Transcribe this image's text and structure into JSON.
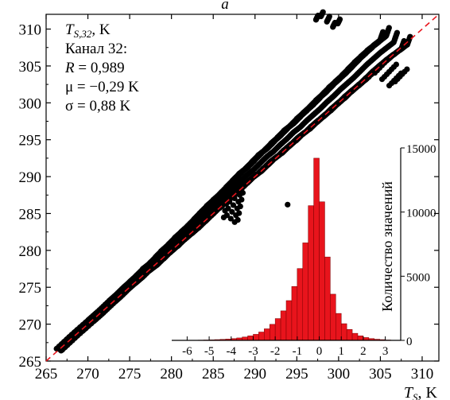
{
  "top_label": "a",
  "chart_data": [
    {
      "type": "scatter",
      "xlabel_main": "T",
      "xlabel_sub": "S",
      "xlabel_unit": ", K",
      "xlim": [
        265,
        312
      ],
      "ylim": [
        265,
        312
      ],
      "xticks": [
        265,
        270,
        275,
        280,
        285,
        290,
        295,
        300,
        305,
        310
      ],
      "yticks": [
        265,
        270,
        275,
        280,
        285,
        290,
        295,
        300,
        305,
        310
      ],
      "reference_line": {
        "slope": 1,
        "intercept": 0,
        "style": "dashed",
        "color": "#e8141c"
      },
      "marker_color": "#000000",
      "series": [
        {
          "x": [
            266.6,
            268.4,
            270.4,
            271.5,
            272.9,
            273.6,
            274.6,
            275.4,
            276.1,
            277.0,
            277.8,
            278.6,
            279.3,
            280.2,
            281.0,
            281.8,
            282.6,
            283.4,
            284.1,
            285.0,
            285.8,
            286.6,
            287.4,
            288.2,
            289.0,
            289.8,
            290.6,
            291.4,
            292.2,
            293.0,
            293.8,
            294.6,
            295.4,
            296.2,
            297.0,
            297.8,
            298.6,
            299.4,
            300.2,
            301.0,
            301.8,
            302.6,
            303.4,
            304.2,
            305.0,
            305.8,
            306.6,
            307.0,
            298.6,
            298.9,
            305.2,
            306.9,
            293.9,
            287.1,
            288.0
          ],
          "y": [
            266.6,
            268.5,
            270.5,
            271.6,
            273.1,
            273.8,
            274.9,
            275.7,
            276.4,
            277.4,
            278.1,
            279.0,
            279.8,
            280.7,
            281.6,
            282.4,
            283.2,
            284.1,
            284.9,
            285.9,
            286.7,
            287.5,
            288.4,
            289.3,
            290.2,
            290.9,
            291.8,
            292.7,
            293.4,
            294.3,
            295.1,
            296.0,
            296.7,
            297.6,
            298.4,
            299.2,
            300.1,
            300.9,
            301.8,
            302.6,
            303.4,
            304.3,
            305.2,
            306.0,
            306.8,
            307.5,
            308.2,
            309.5,
            311.0,
            311.7,
            303.2,
            305.2,
            286.2,
            284.3,
            289.8
          ]
        }
      ],
      "annotations": [
        {
          "main": "T",
          "sub": "S,32",
          "suffix": ", K"
        },
        {
          "text": "Канал 32:"
        },
        {
          "text_italic": "R",
          "text": " = 0,989"
        },
        {
          "text": "μ = −0,29 K"
        },
        {
          "text": "σ = 0,88 K"
        }
      ]
    },
    {
      "type": "bar",
      "role": "inset-histogram",
      "color": "#e8141c",
      "ylabel": "Количество значений",
      "xlim": [
        -6.7,
        3.7
      ],
      "ylim": [
        0,
        15000
      ],
      "xticks": [
        -6,
        -5,
        -4,
        -3,
        -2,
        -1,
        0,
        1,
        2,
        3
      ],
      "yticks": [
        0,
        5000,
        10000,
        15000
      ],
      "bin_width": 0.25,
      "bin_starts": [
        -5.5,
        -5.25,
        -5.0,
        -4.75,
        -4.5,
        -4.25,
        -4.0,
        -3.75,
        -3.5,
        -3.25,
        -3.0,
        -2.75,
        -2.5,
        -2.25,
        -2.0,
        -1.75,
        -1.5,
        -1.25,
        -1.0,
        -0.75,
        -0.5,
        -0.25,
        0.0,
        0.25,
        0.5,
        0.75,
        1.0,
        1.25,
        1.5,
        1.75,
        2.0,
        2.25,
        2.5,
        2.75,
        3.0
      ],
      "values": [
        20,
        30,
        40,
        60,
        80,
        100,
        140,
        190,
        260,
        350,
        470,
        650,
        900,
        1250,
        1700,
        2300,
        3100,
        4200,
        5600,
        7600,
        10500,
        14200,
        10800,
        6500,
        3600,
        2100,
        1300,
        850,
        550,
        350,
        220,
        140,
        90,
        60,
        30
      ]
    }
  ]
}
